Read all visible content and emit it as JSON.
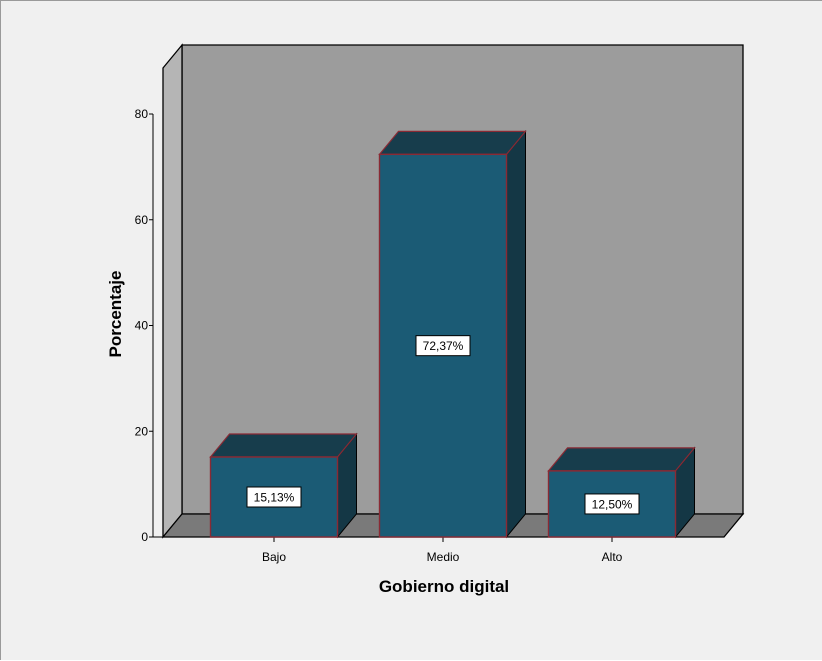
{
  "chart_data": {
    "type": "bar",
    "title": "",
    "xlabel": "Gobierno digital",
    "ylabel": "Porcentaje",
    "categories": [
      "Bajo",
      "Medio",
      "Alto"
    ],
    "values": [
      15.13,
      72.37,
      12.5
    ],
    "value_labels": [
      "15,13%",
      "72,37%",
      "12,50%"
    ],
    "ylim": [
      0,
      80
    ],
    "yticks": [
      0,
      20,
      40,
      60,
      80
    ],
    "style": "3d",
    "grid": false,
    "legend": "none"
  },
  "colors": {
    "frame_background": "#f0f0f0",
    "wall": "#9c9c9c",
    "floor": "#7a7a7a",
    "side_wall": "#b5b5b5",
    "bar_front": "#1b5b75",
    "bar_top": "#173d4c",
    "bar_side": "#143745",
    "bar_edge": "#8a2a34",
    "outline": "#000000"
  }
}
